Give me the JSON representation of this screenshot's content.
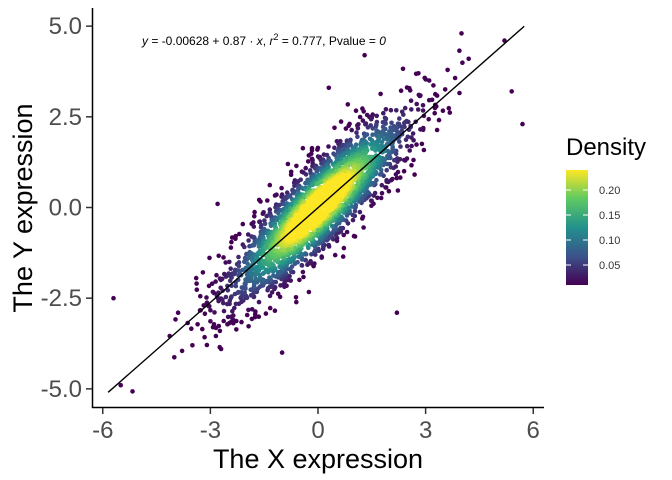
{
  "chart_data": {
    "type": "scatter",
    "xlabel": "The X expression",
    "ylabel": "The Y expression",
    "xlim": [
      -6.3,
      6.3
    ],
    "ylim": [
      -5.5,
      5.5
    ],
    "x_ticks": [
      -6,
      -3,
      0,
      3,
      6
    ],
    "x_tick_labels": [
      "-6",
      "-3",
      "0",
      "3",
      "6"
    ],
    "y_ticks": [
      -5,
      -2.5,
      0,
      2.5,
      5
    ],
    "y_tick_labels": [
      "-5.0",
      "-2.5",
      "0.0",
      "2.5",
      "5.0"
    ],
    "grid": false,
    "annotation": {
      "y": "y",
      "equals": " = ",
      "intercept": "-0.00628",
      "plus": " + ",
      "slope": "0.87",
      "dot": " · ",
      "x": "x",
      "sep": ",  ",
      "r": "r",
      "r_sup": "2",
      "r_value": " = 0.777,  Pvalue = ",
      "p_value": "0"
    },
    "regression": {
      "intercept": -0.00628,
      "slope": 0.87,
      "x_range": [
        -5.85,
        5.75
      ]
    },
    "color_scale": {
      "name": "Density",
      "palette": "viridis",
      "colors": [
        "#440154",
        "#3b528b",
        "#21918c",
        "#5ec962",
        "#fde725"
      ],
      "min": 0.01,
      "max": 0.24,
      "breaks": [
        0.05,
        0.1,
        0.15,
        0.2
      ],
      "break_labels": [
        "0.05",
        "0.10",
        "0.15",
        "0.20"
      ]
    },
    "distribution": {
      "n_points": 2600,
      "x_mean": 0.0,
      "x_sd": 1.25,
      "r": 0.88,
      "residual_sd": 0.64
    },
    "outliers": [
      {
        "x": -5.7,
        "y": -2.5
      },
      {
        "x": -5.5,
        "y": -4.9
      },
      {
        "x": 5.4,
        "y": 3.2
      },
      {
        "x": 5.7,
        "y": 2.3
      },
      {
        "x": 5.2,
        "y": 4.6
      },
      {
        "x": 4.0,
        "y": 4.8
      },
      {
        "x": 4.2,
        "y": 4.1
      },
      {
        "x": -3.5,
        "y": -3.8
      },
      {
        "x": -3.9,
        "y": -2.9
      },
      {
        "x": 2.8,
        "y": 3.7
      },
      {
        "x": 3.1,
        "y": 3.5
      },
      {
        "x": -2.7,
        "y": -3.9
      },
      {
        "x": 2.2,
        "y": -2.9
      },
      {
        "x": -2.8,
        "y": 0.1
      },
      {
        "x": 2.4,
        "y": 1.0
      },
      {
        "x": 1.3,
        "y": 4.2
      },
      {
        "x": 0.3,
        "y": 3.3
      },
      {
        "x": -1.0,
        "y": -4.0
      }
    ]
  }
}
